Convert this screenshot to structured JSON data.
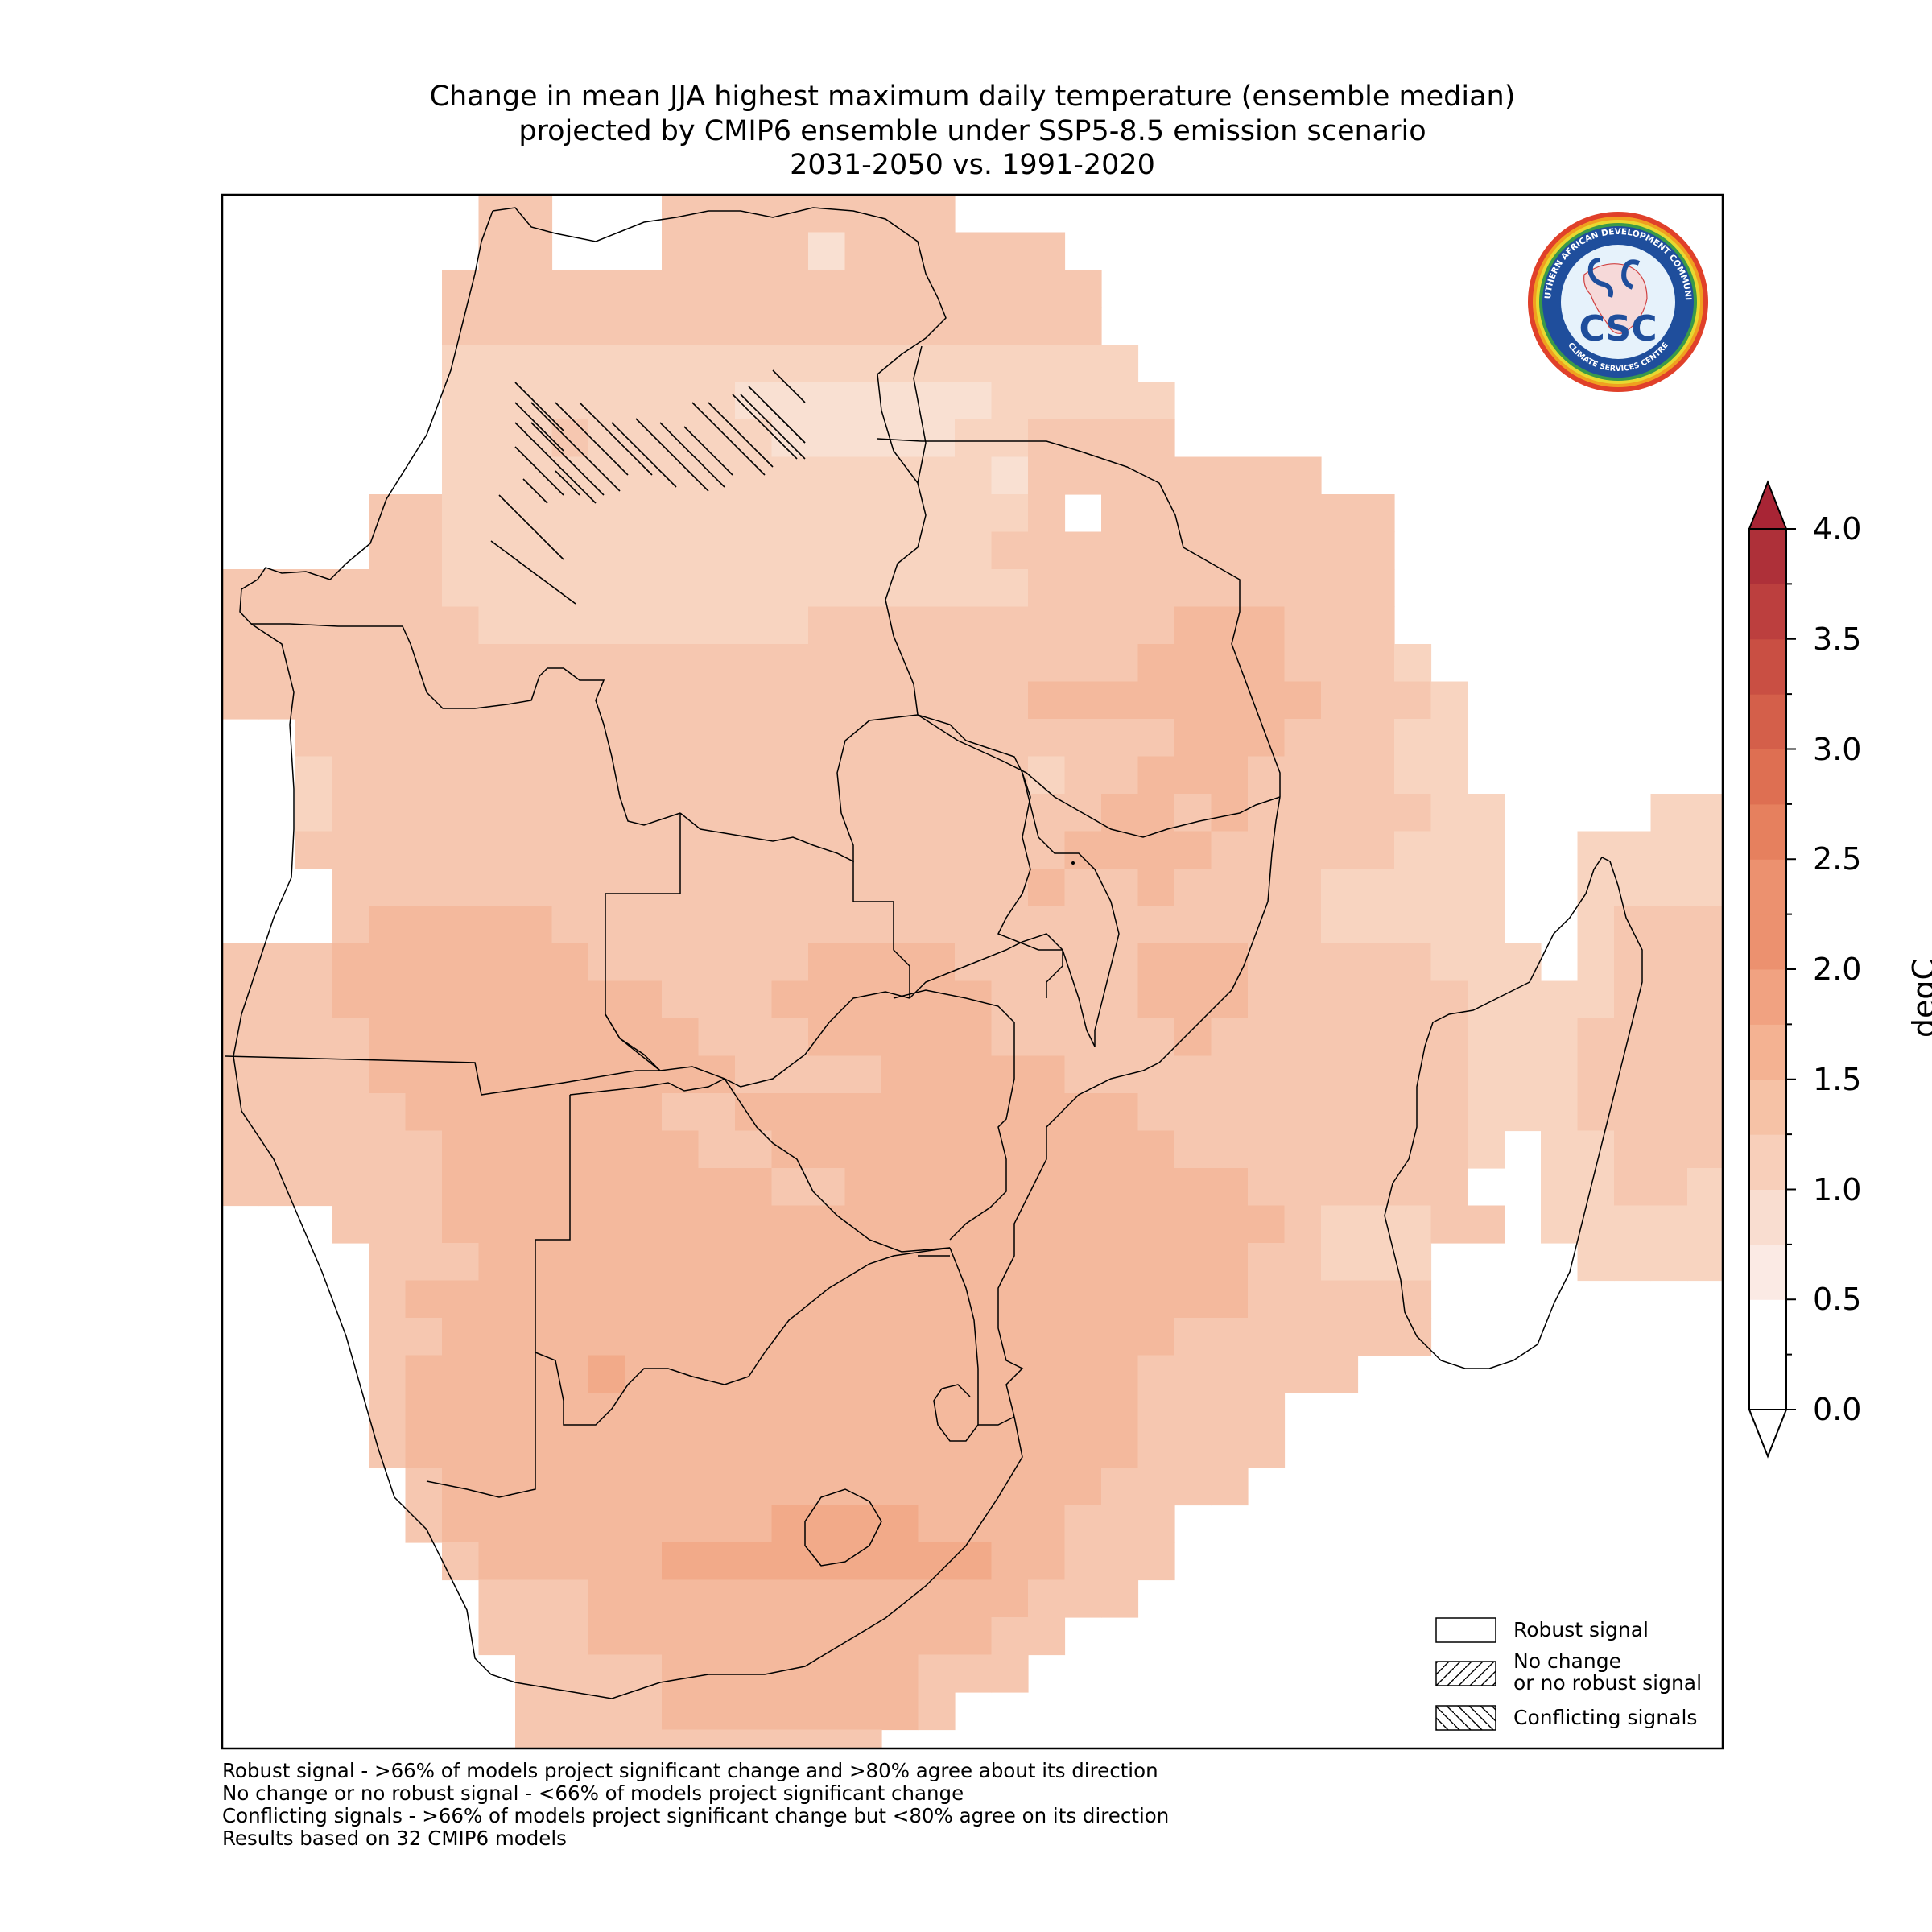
{
  "title": {
    "line1": "Change in mean JJA highest maximum daily temperature (ensemble median)",
    "line2": "projected by CMIP6 ensemble under SSP5-8.5 emission scenario",
    "line3": "2031-2050 vs. 1991-2020"
  },
  "colorbar": {
    "unit": "degC",
    "ticks": [
      "0.0",
      "0.5",
      "1.0",
      "1.5",
      "2.0",
      "2.5",
      "3.0",
      "3.5",
      "4.0"
    ],
    "range": [
      0,
      4
    ],
    "step": 0.25,
    "extend": "both",
    "colors": [
      "#ffffff",
      "#fbeae4",
      "#f9ddd0",
      "#f8cfba",
      "#f6c2a6",
      "#f4b292",
      "#f1a281",
      "#ec916f",
      "#e6805e",
      "#de6f52",
      "#d45f4a",
      "#c94f43",
      "#bc3f3e",
      "#ae3039"
    ]
  },
  "legend": {
    "items": [
      {
        "label": "Robust signal",
        "pattern": "none"
      },
      {
        "label_line1": "No change",
        "label_line2": "or no robust signal",
        "pattern": "forward-hatch"
      },
      {
        "label": "Conflicting signals",
        "pattern": "back-hatch"
      }
    ]
  },
  "logo": {
    "text": "CSC",
    "ring_text_top": "SOUTHERN AFRICAN DEVELOPMENT COMMUNITY",
    "ring_text_bottom": "CLIMATE SERVICES CENTRE"
  },
  "footnotes": [
    "Robust signal - >66% of models project significant change and >80% agree about its direction",
    "No change or no robust signal - <66% of models project significant change",
    "Conflicting signals - >66% of models project significant change but <80% agree on its direction",
    "Results based on 32 CMIP6 models"
  ],
  "map": {
    "region": "Southern Africa",
    "conflicting_signals_area": "northern DR Congo",
    "value_classes": {
      "a": "0.5-0.75",
      "b": "0.75-1.0",
      "c": "1.0-1.25",
      "d": "1.25-1.5",
      "e": "1.5-1.75",
      "f": "1.75-2.0"
    }
  }
}
